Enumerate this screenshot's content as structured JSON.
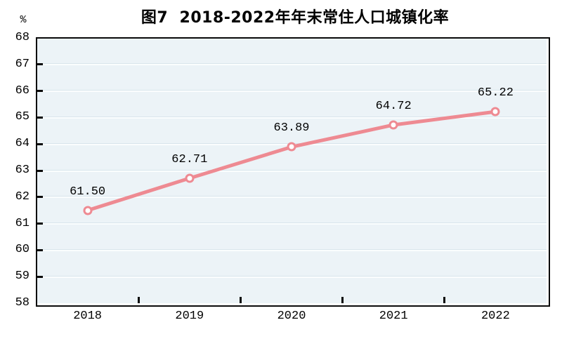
{
  "figure": {
    "title": "图7  2018-2022年年末常住人口城镇化率",
    "unit_label": "%"
  },
  "chart_data": {
    "type": "line",
    "title": "图7  2018-2022年年末常住人口城镇化率",
    "categories": [
      "2018",
      "2019",
      "2020",
      "2021",
      "2022"
    ],
    "values": [
      61.5,
      62.71,
      63.89,
      64.72,
      65.22
    ],
    "point_labels": [
      "61.50",
      "62.71",
      "63.89",
      "64.72",
      "65.22"
    ],
    "xlabel": "",
    "ylabel": "%",
    "ylim": [
      58,
      68
    ],
    "ytick_interval": 1,
    "ytick_labels": [
      "58",
      "59",
      "60",
      "61",
      "62",
      "63",
      "64",
      "65",
      "66",
      "67",
      "68"
    ],
    "grid": "horizontal",
    "legend": "none",
    "colors": {
      "line": "#ee8a92",
      "marker_fill": "#ffffff",
      "plot_background": "#ecf3f7",
      "gridline": "#d9e5ec",
      "axis": "#0a0a0a",
      "text": "#000000"
    }
  }
}
